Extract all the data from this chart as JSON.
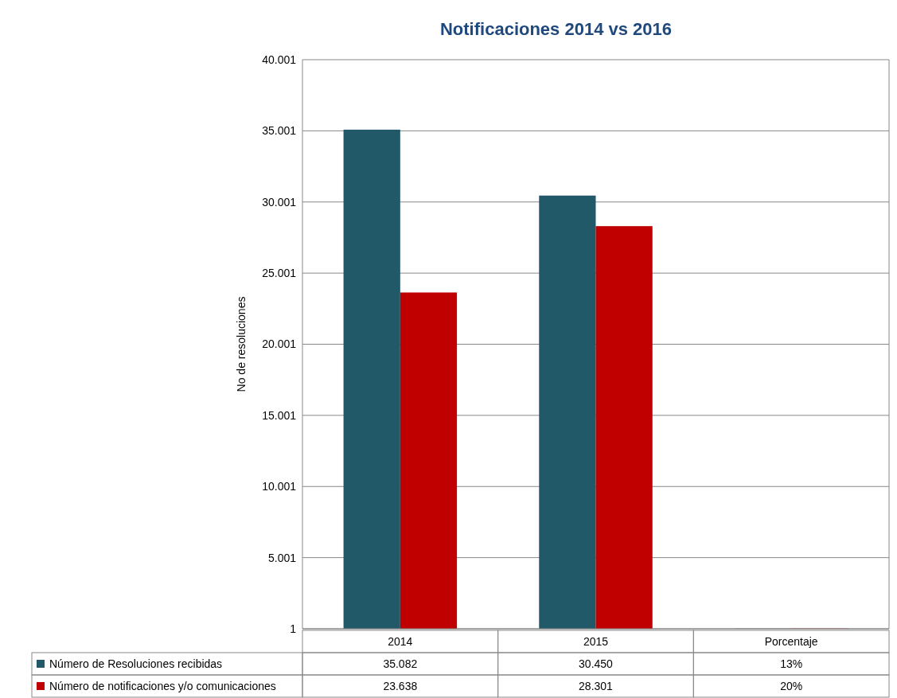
{
  "chart_data": {
    "type": "bar",
    "title": "Notificaciones 2014 vs 2016",
    "ylabel": "No de resoluciones",
    "categories": [
      "2014",
      "2015",
      "Porcentaje"
    ],
    "series": [
      {
        "name": "Número de Resoluciones  recibidas",
        "color": "#215968",
        "values": [
          35082,
          30450,
          13
        ],
        "value_labels": [
          "35.082",
          "30.450",
          "13%"
        ]
      },
      {
        "name": "Número de notificaciones  y/o comunicaciones",
        "color": "#c00000",
        "values": [
          23638,
          28301,
          20
        ],
        "value_labels": [
          "23.638",
          "28.301",
          "20%"
        ]
      }
    ],
    "ylim": [
      1,
      40001
    ],
    "yticks": [
      {
        "value": 1,
        "label": "1"
      },
      {
        "value": 5001,
        "label": "5.001"
      },
      {
        "value": 10001,
        "label": "10.001"
      },
      {
        "value": 15001,
        "label": "15.001"
      },
      {
        "value": 20001,
        "label": "20.001"
      },
      {
        "value": 25001,
        "label": "25.001"
      },
      {
        "value": 30001,
        "label": "30.001"
      },
      {
        "value": 35001,
        "label": "35.001"
      },
      {
        "value": 40001,
        "label": "40.001"
      }
    ],
    "grid": "y",
    "legend": "bottom"
  }
}
